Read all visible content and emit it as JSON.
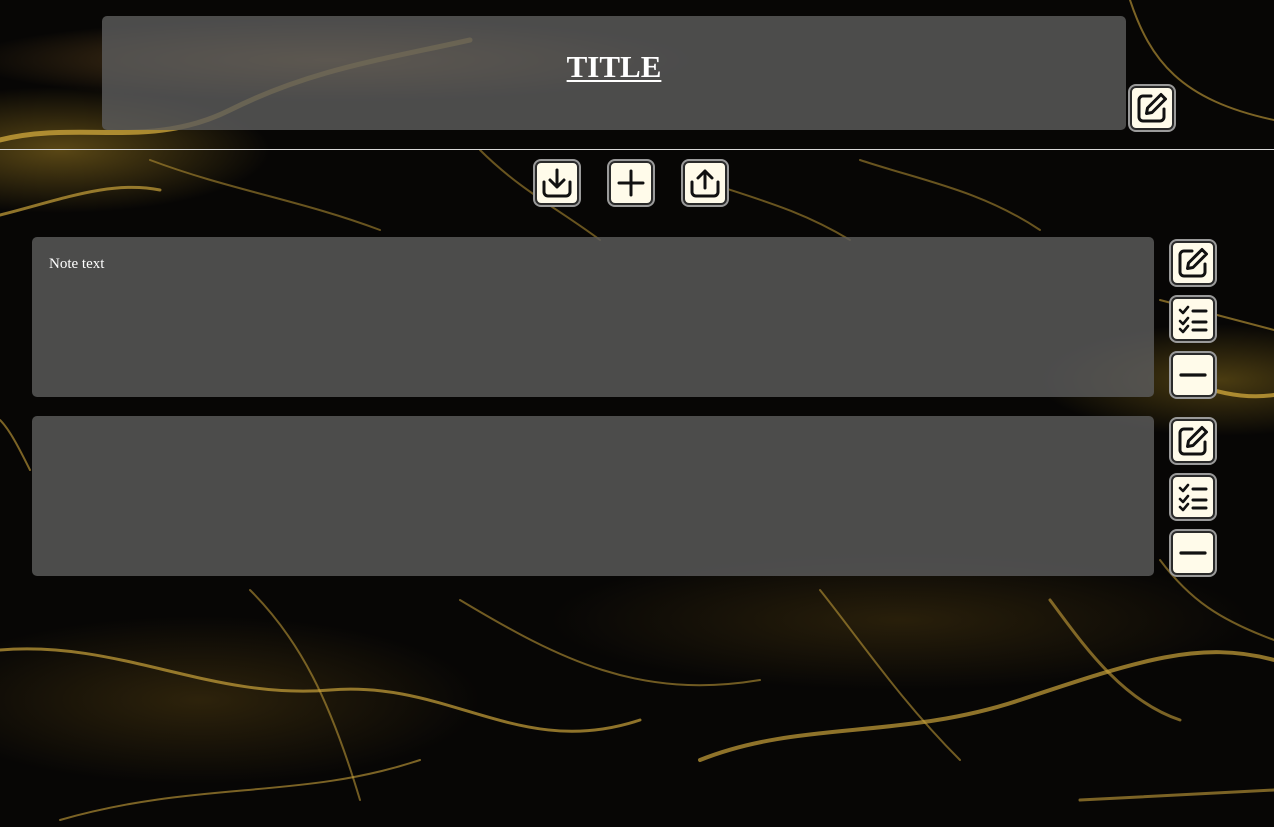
{
  "header": {
    "title": "TITLE",
    "edit_icon": "edit-square-icon"
  },
  "toolbar": {
    "buttons": [
      {
        "name": "download-button",
        "icon": "download-tray-icon"
      },
      {
        "name": "add-note-button",
        "icon": "plus-icon"
      },
      {
        "name": "upload-button",
        "icon": "upload-tray-icon"
      }
    ]
  },
  "notes": [
    {
      "text": "Note text",
      "actions": [
        "edit-square-icon",
        "checklist-icon",
        "minus-icon"
      ]
    },
    {
      "text": "",
      "actions": [
        "edit-square-icon",
        "checklist-icon",
        "minus-icon"
      ]
    }
  ],
  "colors": {
    "panel": "#5c5c5c",
    "button_bg": "#fffbea",
    "text": "#ffffff",
    "gold": "#d4a82a"
  }
}
